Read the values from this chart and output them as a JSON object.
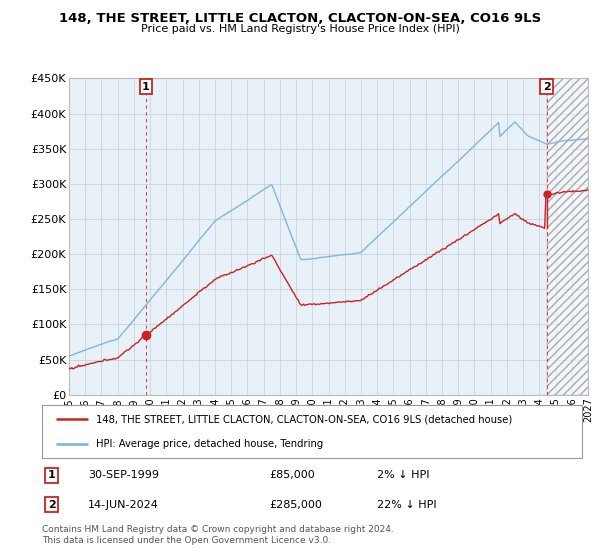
{
  "title": "148, THE STREET, LITTLE CLACTON, CLACTON-ON-SEA, CO16 9LS",
  "subtitle": "Price paid vs. HM Land Registry's House Price Index (HPI)",
  "legend_line1": "148, THE STREET, LITTLE CLACTON, CLACTON-ON-SEA, CO16 9LS (detached house)",
  "legend_line2": "HPI: Average price, detached house, Tendring",
  "footer": "Contains HM Land Registry data © Crown copyright and database right 2024.\nThis data is licensed under the Open Government Licence v3.0.",
  "ylim": [
    0,
    450000
  ],
  "yticks": [
    0,
    50000,
    100000,
    150000,
    200000,
    250000,
    300000,
    350000,
    400000,
    450000
  ],
  "ytick_labels": [
    "£0",
    "£50K",
    "£100K",
    "£150K",
    "£200K",
    "£250K",
    "£300K",
    "£350K",
    "£400K",
    "£450K"
  ],
  "xlim_start": 1995.0,
  "xlim_end": 2027.0,
  "xticks": [
    1995,
    1996,
    1997,
    1998,
    1999,
    2000,
    2001,
    2002,
    2003,
    2004,
    2005,
    2006,
    2007,
    2008,
    2009,
    2010,
    2011,
    2012,
    2013,
    2014,
    2015,
    2016,
    2017,
    2018,
    2019,
    2020,
    2021,
    2022,
    2023,
    2024,
    2025,
    2026,
    2027
  ],
  "hpi_color": "#7ab0d4",
  "price_color": "#cc2222",
  "sale1_x": 1999.75,
  "sale1_y": 85000,
  "sale2_x": 2024.45,
  "sale2_y": 285000,
  "hatch_start": 2024.5,
  "background_color": "#ffffff",
  "chart_bg": "#e8f0f8",
  "grid_color": "#c8d4e0",
  "annotation_box_color": "#cc2222",
  "note1_date": "30-SEP-1999",
  "note1_price": "£85,000",
  "note1_hpi": "2% ↓ HPI",
  "note2_date": "14-JUN-2024",
  "note2_price": "£285,000",
  "note2_hpi": "22% ↓ HPI"
}
